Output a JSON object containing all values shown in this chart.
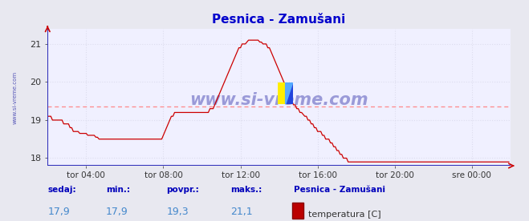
{
  "title": "Pesnica - Zamušani",
  "bg_color": "#e8e8f0",
  "plot_bg_color": "#f0f0ff",
  "line_color": "#cc0000",
  "grid_color": "#ddddee",
  "avg_line_color": "#ff8888",
  "x_min": 0,
  "x_max": 288,
  "y_min": 17.8,
  "y_max": 21.4,
  "yticks": [
    18,
    19,
    20,
    21
  ],
  "xtick_positions": [
    24,
    72,
    120,
    168,
    216,
    264
  ],
  "xtick_labels": [
    "tor 04:00",
    "tor 08:00",
    "tor 12:00",
    "tor 16:00",
    "tor 20:00",
    "sre 00:00"
  ],
  "avg_value": 19.35,
  "sedaj": "17,9",
  "min_val": "17,9",
  "povpr": "19,3",
  "maks": "21,1",
  "legend_label": "temperatura [C]",
  "legend_station": "Pesnica - Zamušani",
  "watermark": "www.si-vreme.com",
  "watermark_color": "#3333aa",
  "side_label": "www.si-vreme.com",
  "temperature_data": [
    19.1,
    19.1,
    19.1,
    19.0,
    19.0,
    19.0,
    19.0,
    19.0,
    19.0,
    19.0,
    18.9,
    18.9,
    18.9,
    18.9,
    18.8,
    18.8,
    18.7,
    18.7,
    18.7,
    18.7,
    18.65,
    18.65,
    18.65,
    18.65,
    18.65,
    18.6,
    18.6,
    18.6,
    18.6,
    18.6,
    18.55,
    18.55,
    18.5,
    18.5,
    18.5,
    18.5,
    18.5,
    18.5,
    18.5,
    18.5,
    18.5,
    18.5,
    18.5,
    18.5,
    18.5,
    18.5,
    18.5,
    18.5,
    18.5,
    18.5,
    18.5,
    18.5,
    18.5,
    18.5,
    18.5,
    18.5,
    18.5,
    18.5,
    18.5,
    18.5,
    18.5,
    18.5,
    18.5,
    18.5,
    18.5,
    18.5,
    18.5,
    18.5,
    18.5,
    18.5,
    18.5,
    18.5,
    18.6,
    18.7,
    18.8,
    18.9,
    19.0,
    19.1,
    19.1,
    19.2,
    19.2,
    19.2,
    19.2,
    19.2,
    19.2,
    19.2,
    19.2,
    19.2,
    19.2,
    19.2,
    19.2,
    19.2,
    19.2,
    19.2,
    19.2,
    19.2,
    19.2,
    19.2,
    19.2,
    19.2,
    19.2,
    19.3,
    19.3,
    19.3,
    19.4,
    19.5,
    19.6,
    19.7,
    19.8,
    19.9,
    20.0,
    20.1,
    20.2,
    20.3,
    20.4,
    20.5,
    20.6,
    20.7,
    20.8,
    20.9,
    20.9,
    21.0,
    21.0,
    21.0,
    21.05,
    21.1,
    21.1,
    21.1,
    21.1,
    21.1,
    21.1,
    21.1,
    21.05,
    21.05,
    21.0,
    21.0,
    21.0,
    20.9,
    20.9,
    20.8,
    20.7,
    20.6,
    20.5,
    20.4,
    20.3,
    20.2,
    20.1,
    20.0,
    19.9,
    19.8,
    19.7,
    19.6,
    19.5,
    19.4,
    19.4,
    19.3,
    19.3,
    19.2,
    19.2,
    19.15,
    19.1,
    19.1,
    19.0,
    19.0,
    18.9,
    18.9,
    18.8,
    18.8,
    18.7,
    18.7,
    18.7,
    18.6,
    18.6,
    18.5,
    18.5,
    18.5,
    18.4,
    18.4,
    18.3,
    18.3,
    18.2,
    18.2,
    18.1,
    18.1,
    18.0,
    18.0,
    18.0,
    17.9,
    17.9,
    17.9,
    17.9,
    17.9,
    17.9,
    17.9,
    17.9,
    17.9,
    17.9,
    17.9,
    17.9,
    17.9,
    17.9,
    17.9,
    17.9,
    17.9,
    17.9,
    17.9,
    17.9,
    17.9,
    17.9,
    17.9,
    17.9,
    17.9,
    17.9,
    17.9,
    17.9,
    17.9,
    17.9,
    17.9,
    17.9,
    17.9,
    17.9,
    17.9,
    17.9,
    17.9,
    17.9,
    17.9,
    17.9,
    17.9,
    17.9,
    17.9,
    17.9,
    17.9,
    17.9,
    17.9,
    17.9,
    17.9,
    17.9,
    17.9,
    17.9,
    17.9,
    17.9,
    17.9,
    17.9,
    17.9,
    17.9,
    17.9,
    17.9,
    17.9,
    17.9,
    17.9,
    17.9,
    17.9,
    17.9,
    17.9,
    17.9,
    17.9,
    17.9,
    17.9,
    17.9,
    17.9,
    17.9,
    17.9,
    17.9,
    17.9,
    17.9,
    17.9,
    17.9,
    17.9,
    17.9,
    17.9,
    17.9,
    17.9,
    17.9,
    17.9,
    17.9,
    17.9,
    17.9,
    17.9,
    17.9,
    17.9,
    17.9,
    17.9,
    17.9,
    17.9,
    17.9,
    17.9,
    17.9,
    17.9
  ]
}
